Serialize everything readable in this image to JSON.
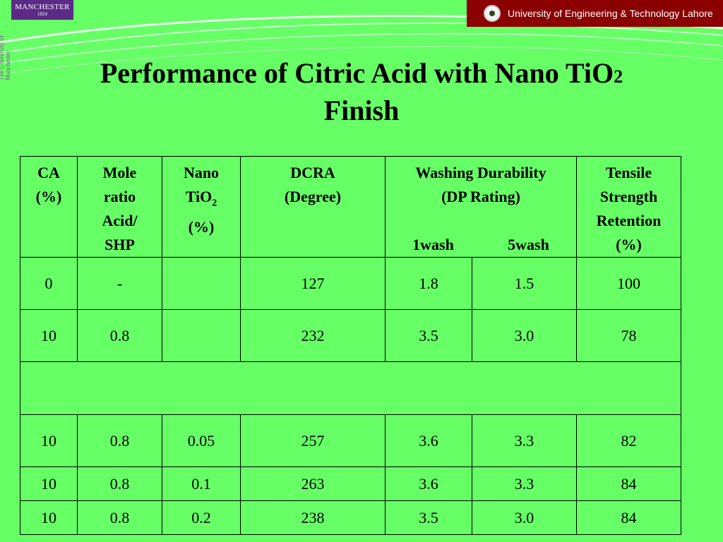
{
  "header": {
    "manchester_logo": {
      "name": "MANCHESTER",
      "year": "1824"
    },
    "vertical_mark": "The University of Manchester",
    "university_banner": "University of Engineering & Technology Lahore",
    "emblem_icon": "uet-emblem-icon"
  },
  "slide": {
    "title_line1": "Performance of Citric Acid with Nano TiO",
    "title_sub": "2",
    "title_line2": "Finish"
  },
  "table": {
    "headers": {
      "ca": [
        "CA",
        "(%)"
      ],
      "mole_ratio": [
        "Mole",
        "ratio",
        "Acid/",
        "SHP"
      ],
      "nano": {
        "line1": "Nano",
        "line2": "TiO",
        "sub": "2",
        "line3": "(%)"
      },
      "dcra": [
        "DCRA",
        "(Degree)"
      ],
      "washing": {
        "title": "Washing Durability",
        "subtitle": "(DP Rating)",
        "wash1": "1wash",
        "wash5": "5wash"
      },
      "tensile": [
        "Tensile",
        "Strength",
        "Retention",
        "(%)"
      ]
    },
    "rows": [
      [
        "0",
        "-",
        "",
        "127",
        "1.8",
        "1.5",
        "100"
      ],
      [
        "10",
        "0.8",
        "",
        "232",
        "3.5",
        "3.0",
        "78"
      ],
      [
        "10",
        "0.8",
        "0.05",
        "257",
        "3.6",
        "3.3",
        "82"
      ],
      [
        "10",
        "0.8",
        "0.1",
        "263",
        "3.6",
        "3.3",
        "84"
      ],
      [
        "10",
        "0.8",
        "0.2",
        "238",
        "3.5",
        "3.0",
        "84"
      ]
    ]
  },
  "colors": {
    "background": "#66ff66",
    "banner": "#8b0000",
    "manchester_purple": "#5b2a86"
  }
}
